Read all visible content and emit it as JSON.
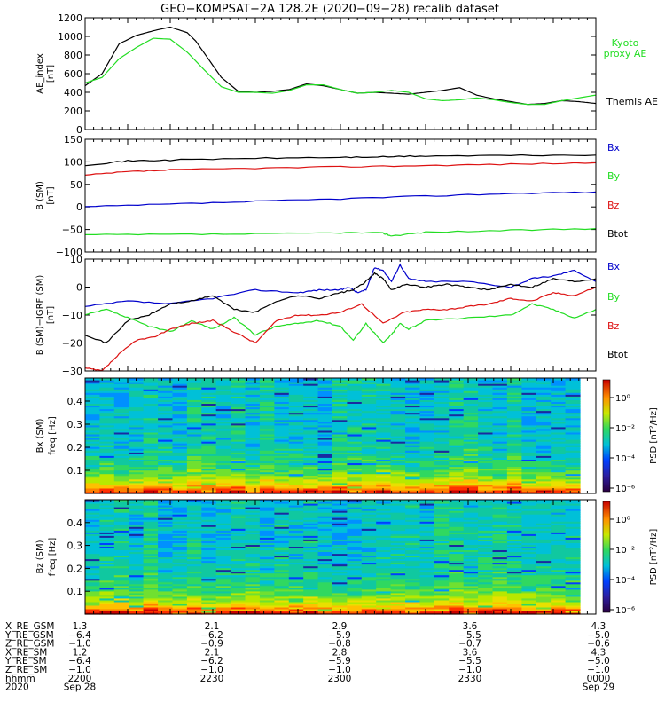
{
  "title": "GEO−KOMPSAT−2A 128.2E (2020−09−28) recalib dataset",
  "colors": {
    "black": "#000000",
    "green": "#22dd22",
    "red": "#dd1111",
    "blue": "#0000cc"
  },
  "chart_data": [
    {
      "type": "line",
      "panel": "ae",
      "ylabel": "AE_index",
      "yunit": "[nT]",
      "ylim": [
        0,
        1200
      ],
      "yticks": [
        "0",
        "200",
        "400",
        "600",
        "800",
        "1000",
        "1200"
      ],
      "xlim": [
        0,
        120
      ],
      "series": [
        {
          "name": "Themis AE",
          "color": "#000000",
          "x": [
            0,
            4,
            8,
            12,
            16,
            20,
            24,
            26,
            28,
            32,
            36,
            40,
            44,
            48,
            52,
            56,
            60,
            64,
            68,
            72,
            76,
            80,
            84,
            88,
            92,
            96,
            100,
            104,
            108,
            112,
            116,
            120
          ],
          "y": [
            470,
            600,
            920,
            1010,
            1060,
            1100,
            1040,
            950,
            820,
            560,
            410,
            400,
            410,
            430,
            490,
            470,
            430,
            390,
            400,
            390,
            380,
            400,
            420,
            450,
            370,
            330,
            300,
            270,
            280,
            310,
            300,
            280
          ]
        },
        {
          "name": "Kyoto proxy AE",
          "color": "#22dd22",
          "x": [
            0,
            4,
            8,
            12,
            16,
            20,
            24,
            28,
            32,
            36,
            40,
            44,
            48,
            52,
            56,
            60,
            64,
            68,
            72,
            76,
            80,
            84,
            88,
            92,
            96,
            100,
            104,
            108,
            112,
            116,
            120
          ],
          "y": [
            500,
            560,
            760,
            880,
            980,
            970,
            830,
            640,
            460,
            400,
            400,
            390,
            420,
            480,
            480,
            430,
            390,
            400,
            420,
            400,
            330,
            310,
            320,
            340,
            320,
            290,
            270,
            270,
            310,
            340,
            370
          ]
        }
      ]
    },
    {
      "type": "line",
      "panel": "b_sm",
      "ylabel": "B (SM)",
      "yunit": "[nT]",
      "ylim": [
        -100,
        150
      ],
      "yticks": [
        "−100",
        "−50",
        "0",
        "50",
        "100",
        "150"
      ],
      "xlim": [
        0,
        120
      ],
      "series": [
        {
          "name": "Bx",
          "color": "#0000cc",
          "x": [
            0,
            20,
            40,
            60,
            80,
            100,
            120
          ],
          "y": [
            0,
            6,
            12,
            18,
            24,
            30,
            33
          ]
        },
        {
          "name": "By",
          "color": "#22dd22",
          "x": [
            0,
            20,
            40,
            60,
            70,
            72,
            80,
            100,
            120
          ],
          "y": [
            -62,
            -61,
            -60,
            -57,
            -58,
            -64,
            -56,
            -52,
            -48
          ]
        },
        {
          "name": "Bz",
          "color": "#dd1111",
          "x": [
            0,
            10,
            20,
            40,
            60,
            80,
            100,
            120
          ],
          "y": [
            70,
            78,
            82,
            86,
            89,
            92,
            95,
            98
          ]
        },
        {
          "name": "Btot",
          "color": "#000000",
          "x": [
            0,
            10,
            20,
            40,
            60,
            70,
            80,
            100,
            120
          ],
          "y": [
            93,
            102,
            104,
            108,
            110,
            111,
            113,
            114,
            115
          ]
        }
      ]
    },
    {
      "type": "line",
      "panel": "b_minus_igrf",
      "ylabel": "B (SM)−IGRF (SM)",
      "yunit": "[nT]",
      "ylim": [
        -30,
        10
      ],
      "yticks": [
        "−30",
        "−20",
        "−10",
        "0",
        "10"
      ],
      "xlim": [
        0,
        120
      ],
      "series": [
        {
          "name": "Bx",
          "color": "#0000cc",
          "x": [
            0,
            10,
            20,
            30,
            40,
            50,
            55,
            60,
            62,
            64,
            66,
            68,
            70,
            72,
            74,
            76,
            80,
            90,
            100,
            105,
            110,
            115,
            120
          ],
          "y": [
            -7,
            -5,
            -6,
            -4,
            -1,
            -2,
            -1,
            -1,
            0,
            -2,
            -1,
            7,
            6,
            2,
            8,
            3,
            2,
            2,
            0,
            3,
            4,
            6,
            2
          ]
        },
        {
          "name": "By",
          "color": "#22dd22",
          "x": [
            0,
            5,
            10,
            15,
            20,
            25,
            30,
            35,
            40,
            45,
            50,
            55,
            60,
            63,
            66,
            70,
            72,
            74,
            76,
            80,
            90,
            100,
            105,
            110,
            115,
            120
          ],
          "y": [
            -10,
            -8,
            -11,
            -14,
            -16,
            -12,
            -15,
            -11,
            -17,
            -14,
            -13,
            -12,
            -14,
            -19,
            -13,
            -20,
            -17,
            -13,
            -15,
            -12,
            -11,
            -10,
            -6,
            -8,
            -11,
            -8
          ]
        },
        {
          "name": "Bz",
          "color": "#dd1111",
          "x": [
            0,
            4,
            8,
            12,
            16,
            20,
            25,
            30,
            35,
            40,
            45,
            50,
            55,
            60,
            65,
            70,
            75,
            80,
            85,
            90,
            95,
            100,
            105,
            110,
            115,
            120
          ],
          "y": [
            -29,
            -30,
            -24,
            -19,
            -18,
            -15,
            -13,
            -12,
            -16,
            -20,
            -12,
            -10,
            -10,
            -9,
            -6,
            -13,
            -9,
            -8,
            -8,
            -7,
            -6,
            -4,
            -5,
            -2,
            -3,
            0
          ]
        },
        {
          "name": "Btot",
          "color": "#000000",
          "x": [
            0,
            5,
            10,
            15,
            20,
            25,
            30,
            35,
            40,
            45,
            50,
            55,
            60,
            63,
            66,
            68,
            70,
            72,
            75,
            80,
            85,
            90,
            95,
            100,
            105,
            110,
            115,
            120
          ],
          "y": [
            -17,
            -20,
            -12,
            -10,
            -6,
            -5,
            -3,
            -8,
            -9,
            -5,
            -3,
            -4,
            -2,
            -1,
            2,
            5,
            3,
            -1,
            1,
            0,
            1,
            0,
            -1,
            1,
            0,
            3,
            2,
            3
          ]
        }
      ]
    },
    {
      "type": "heatmap",
      "panel": "spec_bx",
      "ylabel": "Bx (SM)",
      "yunit": "freq [Hz]",
      "ylim": [
        0,
        0.5
      ],
      "yticks": [
        "0.1",
        "0.2",
        "0.3",
        "0.4"
      ],
      "colorbar": {
        "label": "PSD [nT²/Hz]",
        "ticks": [
          "10⁰",
          "10⁻²",
          "10⁻⁴",
          "10⁻⁶"
        ]
      }
    },
    {
      "type": "heatmap",
      "panel": "spec_bz",
      "ylabel": "Bz (SM)",
      "yunit": "freq [Hz]",
      "ylim": [
        0,
        0.5
      ],
      "yticks": [
        "0.1",
        "0.2",
        "0.3",
        "0.4"
      ],
      "colorbar": {
        "label": "PSD [nT²/Hz]",
        "ticks": [
          "10⁰",
          "10⁻²",
          "10⁻⁴",
          "10⁻⁶"
        ]
      }
    }
  ],
  "ephemeris": {
    "labels": [
      "X_RE_GSM",
      "Y_RE_GSM",
      "Z_RE_GSM",
      "X_RE_SM",
      "Y_RE_SM",
      "Z_RE_SM",
      "hhmm",
      "2020"
    ],
    "columns": [
      [
        "1.3",
        "−6.4",
        "−1.0",
        "1.2",
        "−6.4",
        "−1.0",
        "2200",
        "Sep 28"
      ],
      [
        "2.1",
        "−6.2",
        "−0.9",
        "2.1",
        "−6.2",
        "−1.0",
        "2230",
        ""
      ],
      [
        "2.9",
        "−5.9",
        "−0.8",
        "2.8",
        "−5.9",
        "−1.0",
        "2300",
        ""
      ],
      [
        "3.6",
        "−5.5",
        "−0.7",
        "3.6",
        "−5.5",
        "−1.0",
        "2330",
        ""
      ],
      [
        "4.3",
        "−5.0",
        "−0.6",
        "4.3",
        "−5.0",
        "−1.0",
        "0000",
        "Sep 29"
      ]
    ]
  }
}
